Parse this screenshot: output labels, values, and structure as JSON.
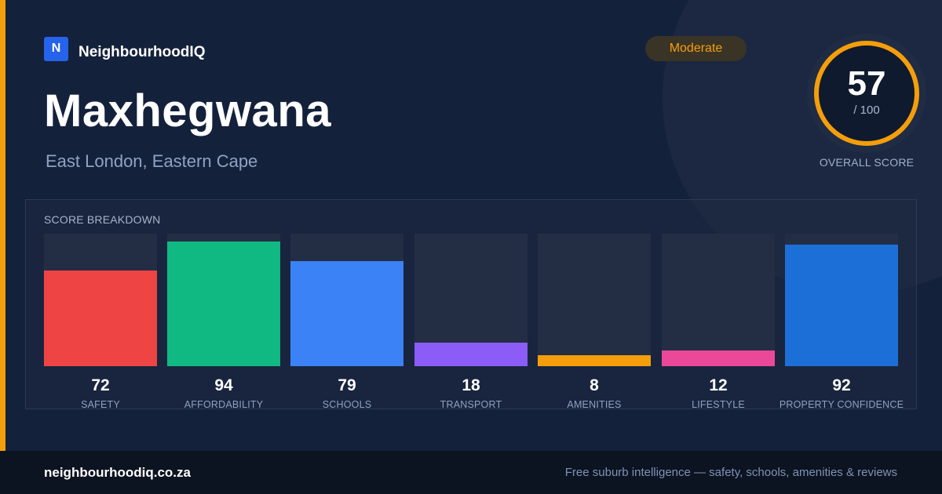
{
  "brand": {
    "logo_letter": "N",
    "name": "NeighbourhoodIQ"
  },
  "badge": {
    "label": "Moderate",
    "color": "#f59e0b"
  },
  "suburb": {
    "name": "Maxhegwana",
    "location": "East London, Eastern Cape"
  },
  "overall": {
    "score": "57",
    "max_label": "/ 100",
    "fraction": 0.57,
    "label": "OVERALL SCORE",
    "ring_color": "#f59e0b"
  },
  "breakdown": {
    "label": "SCORE BREAKDOWN",
    "items": [
      {
        "name": "SAFETY",
        "value": "72",
        "fraction": 0.72,
        "color": "#ef4444"
      },
      {
        "name": "AFFORDABILITY",
        "value": "94",
        "fraction": 0.94,
        "color": "#10b981"
      },
      {
        "name": "SCHOOLS",
        "value": "79",
        "fraction": 0.79,
        "color": "#3b82f6"
      },
      {
        "name": "TRANSPORT",
        "value": "18",
        "fraction": 0.18,
        "color": "#8b5cf6"
      },
      {
        "name": "AMENITIES",
        "value": "8",
        "fraction": 0.08,
        "color": "#f59e0b"
      },
      {
        "name": "LIFESTYLE",
        "value": "12",
        "fraction": 0.12,
        "color": "#ec4899"
      },
      {
        "name": "PROPERTY CONFIDENCE",
        "value": "92",
        "fraction": 0.92,
        "color": "#1d6fd8"
      }
    ]
  },
  "footer": {
    "url": "neighbourhoodiq.co.za",
    "tagline": "Free suburb intelligence — safety, schools, amenities & reviews"
  }
}
